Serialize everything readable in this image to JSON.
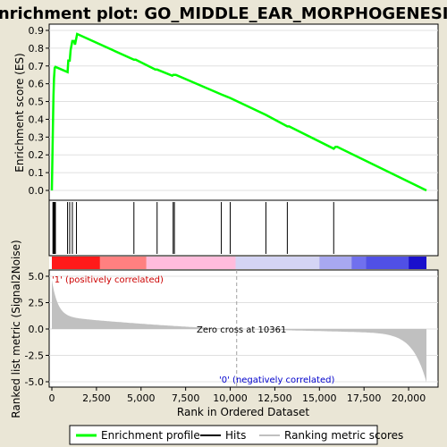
{
  "chart_data": {
    "type": "line",
    "title": "Enrichment plot: GO_MIDDLE_EAR_MORPHOGENESIS",
    "es_panel": {
      "ylabel": "Enrichment score (ES)",
      "ylim": [
        0.0,
        0.9
      ],
      "yticks": [
        "0.0",
        "0.1",
        "0.2",
        "0.3",
        "0.4",
        "0.5",
        "0.6",
        "0.7",
        "0.8",
        "0.9"
      ],
      "series": [
        {
          "name": "Enrichment profile",
          "color": "#00ff00",
          "x": [
            0,
            30,
            60,
            90,
            120,
            160,
            200,
            880,
            920,
            1000,
            1050,
            1150,
            1250,
            1300,
            1380,
            1420,
            4600,
            4700,
            5800,
            5900,
            6750,
            6800,
            6870,
            6950,
            9500,
            10000,
            12000,
            13200,
            13300,
            15800,
            15900,
            16000,
            21000
          ],
          "y": [
            0.0,
            0.18,
            0.36,
            0.53,
            0.63,
            0.69,
            0.695,
            0.665,
            0.73,
            0.73,
            0.79,
            0.84,
            0.84,
            0.82,
            0.86,
            0.88,
            0.735,
            0.735,
            0.68,
            0.68,
            0.645,
            0.65,
            0.65,
            0.65,
            0.54,
            0.52,
            0.425,
            0.36,
            0.36,
            0.235,
            0.245,
            0.245,
            0.0
          ]
        }
      ]
    },
    "hits": [
      60,
      100,
      150,
      200,
      880,
      1000,
      1150,
      1380,
      4600,
      5900,
      6800,
      6870,
      9500,
      10000,
      12000,
      13200,
      15800
    ],
    "ranked_panel": {
      "ylabel": "Ranked list metric (Signal2Noise)",
      "ylim": [
        -5.0,
        5.0
      ],
      "yticks": [
        "-5.0",
        "-2.5",
        "0.0",
        "2.5",
        "5.0"
      ],
      "zero_cross_label": "Zero cross at 10361",
      "zero_cross": 10361,
      "positive_label": "'1' (positively correlated)",
      "negative_label": "'0' (negatively correlated)"
    },
    "xaxis": {
      "xlabel": "Rank in Ordered Dataset",
      "xlim": [
        0,
        21000
      ],
      "xticks": [
        "0",
        "2,500",
        "5,000",
        "7,500",
        "10,000",
        "12,500",
        "15,000",
        "17,500",
        "20,000"
      ]
    },
    "legend": {
      "placement": "bottom",
      "entries": [
        "Enrichment profile",
        "Hits",
        "Ranking metric scores"
      ]
    },
    "colors": {
      "profile": "#00ff00",
      "hits": "#000000",
      "ranking": "#c0c0c0",
      "positive_text": "#cc0000",
      "negative_text": "#0000cc"
    }
  }
}
